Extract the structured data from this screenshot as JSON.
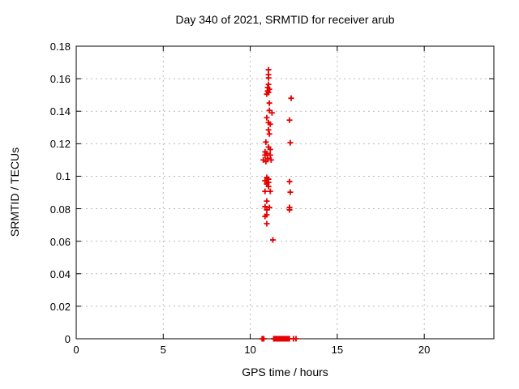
{
  "chart_data": {
    "type": "scatter",
    "title": "Day 340 of 2021, SRMTID for receiver arub",
    "xlabel": "GPS time / hours",
    "ylabel": "SRMTID / TECUs",
    "xlim": [
      0,
      24
    ],
    "ylim": [
      0,
      0.18
    ],
    "grid": true,
    "legend": "none",
    "xticks": {
      "values": [
        0,
        5,
        10,
        15,
        20
      ],
      "labels": [
        "0",
        "5",
        "10",
        "15",
        "20"
      ]
    },
    "yticks": {
      "values": [
        0,
        0.02,
        0.04,
        0.06,
        0.08,
        0.1,
        0.12,
        0.14,
        0.16,
        0.18
      ],
      "labels": [
        "0",
        "0.02",
        "0.04",
        "0.06",
        "0.08",
        "0.1",
        "0.12",
        "0.14",
        "0.16",
        "0.18"
      ]
    },
    "marker": {
      "shape": "plus",
      "color": "#e60000",
      "size": 7
    },
    "series": [
      {
        "name": "SRMTID",
        "points": [
          [
            11.05,
            0.1655
          ],
          [
            11.05,
            0.1625
          ],
          [
            11.05,
            0.1605
          ],
          [
            11.05,
            0.1565
          ],
          [
            11.0,
            0.1545
          ],
          [
            11.1,
            0.1535
          ],
          [
            11.0,
            0.1525
          ],
          [
            11.05,
            0.1515
          ],
          [
            10.95,
            0.1505
          ],
          [
            11.1,
            0.145
          ],
          [
            11.1,
            0.1405
          ],
          [
            11.25,
            0.139
          ],
          [
            10.95,
            0.136
          ],
          [
            11.05,
            0.133
          ],
          [
            11.15,
            0.132
          ],
          [
            11.05,
            0.1285
          ],
          [
            11.1,
            0.126
          ],
          [
            10.9,
            0.121
          ],
          [
            11.05,
            0.118
          ],
          [
            11.15,
            0.1165
          ],
          [
            10.85,
            0.115
          ],
          [
            10.95,
            0.114
          ],
          [
            10.85,
            0.113
          ],
          [
            11.15,
            0.113
          ],
          [
            11.0,
            0.111
          ],
          [
            10.75,
            0.11
          ],
          [
            11.2,
            0.11
          ],
          [
            10.9,
            0.109
          ],
          [
            10.95,
            0.0992
          ],
          [
            11.05,
            0.0982
          ],
          [
            10.85,
            0.0972
          ],
          [
            11.05,
            0.0962
          ],
          [
            10.95,
            0.0952
          ],
          [
            11.05,
            0.0937
          ],
          [
            10.85,
            0.0907
          ],
          [
            11.15,
            0.0907
          ],
          [
            10.95,
            0.0847
          ],
          [
            10.85,
            0.0813
          ],
          [
            11.1,
            0.0808
          ],
          [
            10.95,
            0.0793
          ],
          [
            10.95,
            0.0763
          ],
          [
            10.85,
            0.0753
          ],
          [
            10.95,
            0.0708
          ],
          [
            11.3,
            0.0608
          ],
          [
            12.35,
            0.148
          ],
          [
            12.26,
            0.1345
          ],
          [
            12.3,
            0.1206
          ],
          [
            12.26,
            0.0967
          ],
          [
            12.3,
            0.0902
          ],
          [
            12.26,
            0.0808
          ],
          [
            12.26,
            0.0793
          ],
          [
            10.68,
            0
          ],
          [
            10.73,
            0
          ],
          [
            10.78,
            0
          ],
          [
            11.35,
            0
          ],
          [
            11.4,
            0
          ],
          [
            11.45,
            0
          ],
          [
            11.5,
            0
          ],
          [
            11.55,
            0
          ],
          [
            11.6,
            0
          ],
          [
            11.65,
            0
          ],
          [
            11.7,
            0
          ],
          [
            11.75,
            0
          ],
          [
            11.8,
            0
          ],
          [
            11.85,
            0
          ],
          [
            11.9,
            0
          ],
          [
            11.95,
            0
          ],
          [
            12.0,
            0
          ],
          [
            12.05,
            0
          ],
          [
            12.1,
            0
          ],
          [
            12.15,
            0
          ],
          [
            12.2,
            0
          ],
          [
            12.25,
            0
          ],
          [
            12.49,
            0
          ],
          [
            12.63,
            0
          ]
        ]
      }
    ],
    "colors": {
      "marker": "#e60000",
      "grid": "#b9b9b9",
      "axis": "#000000",
      "background": "#ffffff"
    }
  }
}
